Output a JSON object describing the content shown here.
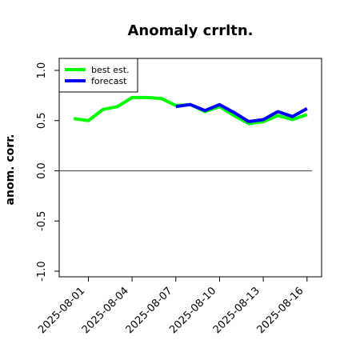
{
  "chart_data": {
    "type": "line",
    "title": "Anomaly crrltn.",
    "xlabel": "",
    "ylabel": "anom. corr.",
    "ylim": [
      -1.0,
      1.0
    ],
    "yticks": [
      "-1.0",
      "-0.5",
      "0.0",
      "0.5",
      "1.0"
    ],
    "xticks": [
      {
        "label": "2025-08-01",
        "color": "#000000"
      },
      {
        "label": "2025-08-04",
        "color": "#000000"
      },
      {
        "label": "2025-08-07",
        "color": "#228B22"
      },
      {
        "label": "2025-08-10",
        "color": "#000000"
      },
      {
        "label": "2025-08-13",
        "color": "#000000"
      },
      {
        "label": "2025-08-16",
        "color": "#000000"
      }
    ],
    "x": [
      "2025-07-31",
      "2025-08-01",
      "2025-08-02",
      "2025-08-03",
      "2025-08-04",
      "2025-08-05",
      "2025-08-06",
      "2025-08-07",
      "2025-08-08",
      "2025-08-09",
      "2025-08-10",
      "2025-08-11",
      "2025-08-12",
      "2025-08-13",
      "2025-08-14",
      "2025-08-15",
      "2025-08-16"
    ],
    "xlim": [
      "2025-07-30",
      "2025-08-17"
    ],
    "grid": false,
    "legend_position": "top-left",
    "reference_line": 0.0,
    "series": [
      {
        "name": "best est.",
        "color": "#00ff00",
        "values": [
          0.52,
          0.5,
          0.61,
          0.64,
          0.73,
          0.73,
          0.72,
          0.65,
          0.66,
          0.59,
          0.64,
          0.55,
          0.47,
          0.49,
          0.55,
          0.51,
          0.56
        ]
      },
      {
        "name": "forecast",
        "color": "#0000ff",
        "start_index": 7,
        "values": [
          null,
          null,
          null,
          null,
          null,
          null,
          null,
          0.64,
          0.66,
          0.6,
          0.66,
          0.58,
          0.49,
          0.51,
          0.59,
          0.54,
          0.62
        ]
      }
    ]
  }
}
